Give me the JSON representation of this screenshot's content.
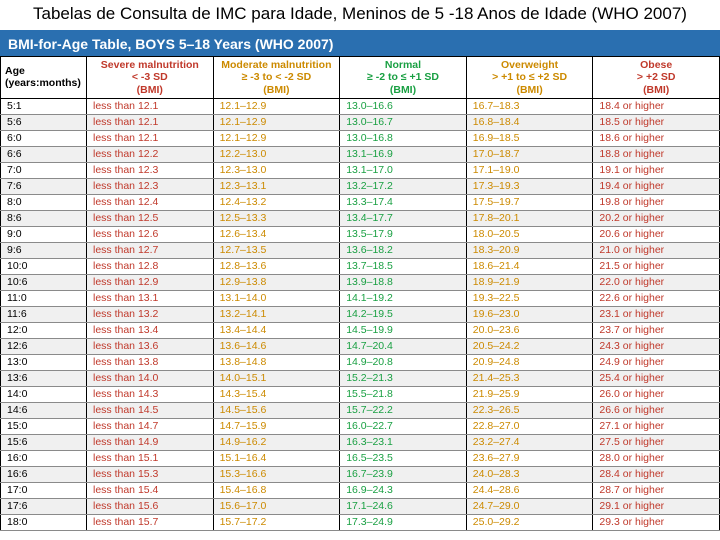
{
  "title": "Tabelas de Consulta de IMC para Idade, Meninos de 5 -18 Anos de Idade (WHO 2007)",
  "subtitle": "BMI-for-Age Table, BOYS 5–18 Years (WHO 2007)",
  "columns": [
    {
      "key": "age",
      "main": "Age",
      "sub": "(years:months)",
      "bmi": "",
      "class": "col-age"
    },
    {
      "key": "severe",
      "main": "Severe malnutrition",
      "sub": "< -3 SD",
      "bmi": "(BMI)",
      "class": "col-severe"
    },
    {
      "key": "mod",
      "main": "Moderate malnutrition",
      "sub": "≥ -3 to < -2 SD",
      "bmi": "(BMI)",
      "class": "col-mod"
    },
    {
      "key": "normal",
      "main": "Normal",
      "sub": "≥ -2 to ≤ +1 SD",
      "bmi": "(BMI)",
      "class": "col-normal"
    },
    {
      "key": "over",
      "main": "Overweight",
      "sub": "> +1 to ≤ +2 SD",
      "bmi": "(BMI)",
      "class": "col-over"
    },
    {
      "key": "obese",
      "main": "Obese",
      "sub": "> +2 SD",
      "bmi": "(BMI)",
      "class": "col-obese"
    }
  ],
  "rows": [
    [
      "5:1",
      "less than 12.1",
      "12.1–12.9",
      "13.0–16.6",
      "16.7–18.3",
      "18.4 or higher"
    ],
    [
      "5:6",
      "less than 12.1",
      "12.1–12.9",
      "13.0–16.7",
      "16.8–18.4",
      "18.5 or higher"
    ],
    [
      "6:0",
      "less than 12.1",
      "12.1–12.9",
      "13.0–16.8",
      "16.9–18.5",
      "18.6 or higher"
    ],
    [
      "6:6",
      "less than 12.2",
      "12.2–13.0",
      "13.1–16.9",
      "17.0–18.7",
      "18.8 or higher"
    ],
    [
      "7:0",
      "less than 12.3",
      "12.3–13.0",
      "13.1–17.0",
      "17.1–19.0",
      "19.1 or higher"
    ],
    [
      "7:6",
      "less than 12.3",
      "12.3–13.1",
      "13.2–17.2",
      "17.3–19.3",
      "19.4 or higher"
    ],
    [
      "8:0",
      "less than 12.4",
      "12.4–13.2",
      "13.3–17.4",
      "17.5–19.7",
      "19.8 or higher"
    ],
    [
      "8:6",
      "less than 12.5",
      "12.5–13.3",
      "13.4–17.7",
      "17.8–20.1",
      "20.2 or higher"
    ],
    [
      "9:0",
      "less than 12.6",
      "12.6–13.4",
      "13.5–17.9",
      "18.0–20.5",
      "20.6 or higher"
    ],
    [
      "9:6",
      "less than 12.7",
      "12.7–13.5",
      "13.6–18.2",
      "18.3–20.9",
      "21.0 or higher"
    ],
    [
      "10:0",
      "less than 12.8",
      "12.8–13.6",
      "13.7–18.5",
      "18.6–21.4",
      "21.5 or higher"
    ],
    [
      "10:6",
      "less than 12.9",
      "12.9–13.8",
      "13.9–18.8",
      "18.9–21.9",
      "22.0 or higher"
    ],
    [
      "11:0",
      "less than 13.1",
      "13.1–14.0",
      "14.1–19.2",
      "19.3–22.5",
      "22.6 or higher"
    ],
    [
      "11:6",
      "less than 13.2",
      "13.2–14.1",
      "14.2–19.5",
      "19.6–23.0",
      "23.1 or higher"
    ],
    [
      "12:0",
      "less than 13.4",
      "13.4–14.4",
      "14.5–19.9",
      "20.0–23.6",
      "23.7 or higher"
    ],
    [
      "12:6",
      "less than 13.6",
      "13.6–14.6",
      "14.7–20.4",
      "20.5–24.2",
      "24.3 or higher"
    ],
    [
      "13:0",
      "less than 13.8",
      "13.8–14.8",
      "14.9–20.8",
      "20.9–24.8",
      "24.9 or higher"
    ],
    [
      "13:6",
      "less than 14.0",
      "14.0–15.1",
      "15.2–21.3",
      "21.4–25.3",
      "25.4 or higher"
    ],
    [
      "14:0",
      "less than 14.3",
      "14.3–15.4",
      "15.5–21.8",
      "21.9–25.9",
      "26.0 or higher"
    ],
    [
      "14:6",
      "less than 14.5",
      "14.5–15.6",
      "15.7–22.2",
      "22.3–26.5",
      "26.6 or higher"
    ],
    [
      "15:0",
      "less than 14.7",
      "14.7–15.9",
      "16.0–22.7",
      "22.8–27.0",
      "27.1 or higher"
    ],
    [
      "15:6",
      "less than 14.9",
      "14.9–16.2",
      "16.3–23.1",
      "23.2–27.4",
      "27.5 or higher"
    ],
    [
      "16:0",
      "less than 15.1",
      "15.1–16.4",
      "16.5–23.5",
      "23.6–27.9",
      "28.0 or higher"
    ],
    [
      "16:6",
      "less than 15.3",
      "15.3–16.6",
      "16.7–23.9",
      "24.0–28.3",
      "28.4 or higher"
    ],
    [
      "17:0",
      "less than 15.4",
      "15.4–16.8",
      "16.9–24.3",
      "24.4–28.6",
      "28.7 or higher"
    ],
    [
      "17:6",
      "less than 15.6",
      "15.6–17.0",
      "17.1–24.6",
      "24.7–29.0",
      "29.1 or higher"
    ],
    [
      "18:0",
      "less than 15.7",
      "15.7–17.2",
      "17.3–24.9",
      "25.0–29.2",
      "29.3 or higher"
    ]
  ],
  "colors": {
    "title_bg": "#ffffff",
    "subtitle_bg": "#2a6fb0",
    "severe": "#c0392b",
    "moderate": "#cc8a00",
    "normal": "#1aa043",
    "overweight": "#cc8a00",
    "obese": "#c0392b",
    "row_alt": "#f0f0f0"
  },
  "typography": {
    "title_fontsize_pt": 13,
    "subtitle_fontsize_pt": 11,
    "table_fontsize_pt": 8
  }
}
